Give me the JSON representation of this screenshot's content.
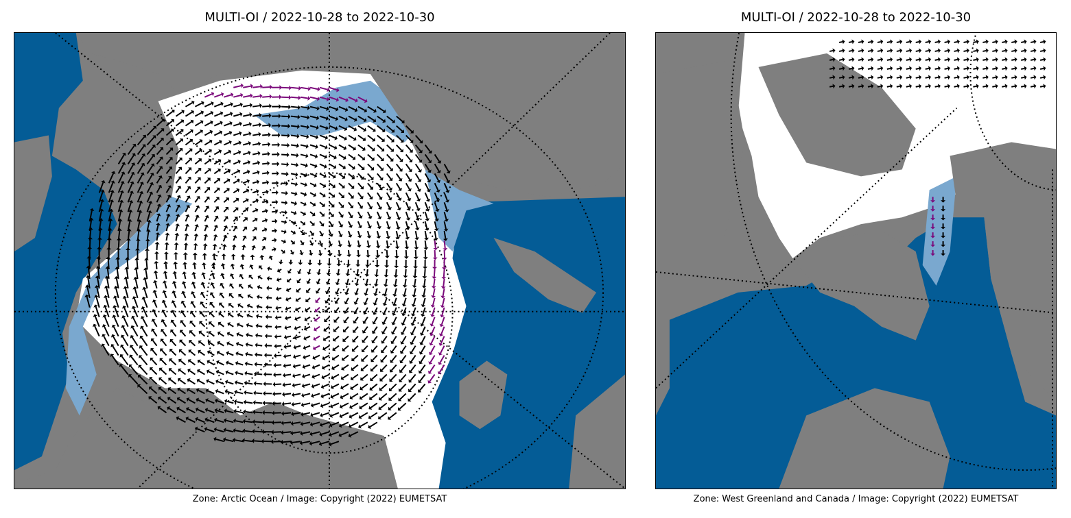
{
  "panels": [
    {
      "title": "MULTI-OI / 2022-10-28 to 2022-10-30",
      "caption": "Zone: Arctic Ocean / Image: Copyright (2022) EUMETSAT"
    },
    {
      "title": "MULTI-OI / 2022-10-28 to 2022-10-30",
      "caption": "Zone: West Greenland and Canada / Image: Copyright (2022) EUMETSAT"
    }
  ],
  "colors": {
    "land": "#7f7f7f",
    "ocean": "#045c96",
    "ice": "#ffffff",
    "ice_edge": "#7aa8cf",
    "vector": "#000000",
    "vector_flagged": "#7b0a7b",
    "graticule": "#000000"
  }
}
